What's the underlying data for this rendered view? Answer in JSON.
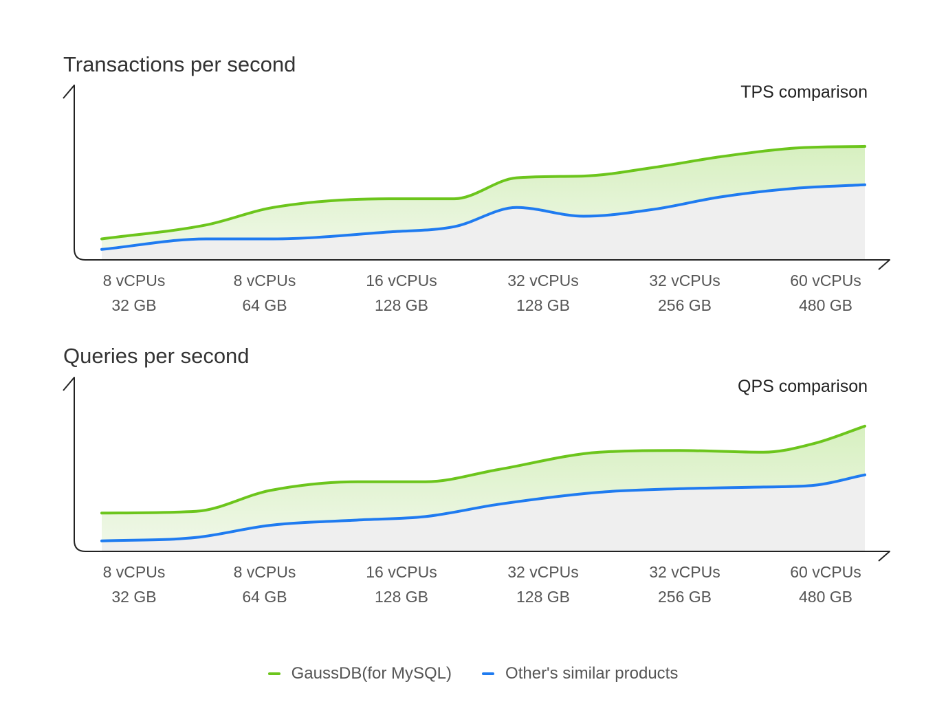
{
  "chart_data": [
    {
      "id": "tps",
      "type": "area",
      "title": "Transactions per second",
      "subtitle": "TPS comparison",
      "categories": [
        [
          "8 vCPUs",
          "32 GB"
        ],
        [
          "8 vCPUs",
          "64 GB"
        ],
        [
          "16 vCPUs",
          "128 GB"
        ],
        [
          "32 vCPUs",
          "128 GB"
        ],
        [
          "32 vCPUs",
          "256 GB"
        ],
        [
          "60 vCPUs",
          "480 GB"
        ]
      ],
      "x": [
        0.0,
        0.72,
        1.18,
        1.98,
        2.43,
        2.86,
        3.32,
        3.81,
        4.26,
        4.78,
        5.26
      ],
      "ylim": [
        0,
        100
      ],
      "series": [
        {
          "name": "GaussDB(for MySQL)",
          "color": "#6cc51c",
          "values": [
            12,
            20,
            30,
            35,
            35,
            47,
            48,
            53,
            59,
            64,
            65
          ]
        },
        {
          "name": "Other's similar products",
          "color": "#1f7bf0",
          "values": [
            6,
            12,
            12,
            16,
            19,
            30,
            25,
            29,
            36,
            41,
            43
          ]
        }
      ],
      "grid": false
    },
    {
      "id": "qps",
      "type": "area",
      "title": "Queries per second",
      "subtitle": "QPS comparison",
      "categories": [
        [
          "8 vCPUs",
          "32 GB"
        ],
        [
          "8 vCPUs",
          "64 GB"
        ],
        [
          "16 vCPUs",
          "128 GB"
        ],
        [
          "32 vCPUs",
          "128 GB"
        ],
        [
          "32 vCPUs",
          "256 GB"
        ],
        [
          "60 vCPUs",
          "480 GB"
        ]
      ],
      "x": [
        0.0,
        0.65,
        1.16,
        1.76,
        2.23,
        2.73,
        3.43,
        3.98,
        4.56,
        4.91,
        5.26
      ],
      "ylim": [
        0,
        100
      ],
      "series": [
        {
          "name": "GaussDB(for MySQL)",
          "color": "#6cc51c",
          "values": [
            22,
            23,
            35,
            40,
            40,
            47,
            57,
            58,
            57,
            62,
            72
          ]
        },
        {
          "name": "Other's similar products",
          "color": "#1f7bf0",
          "values": [
            6,
            8,
            15,
            18,
            20,
            27,
            34,
            36,
            37,
            38,
            44
          ]
        }
      ],
      "grid": false
    }
  ],
  "legend": [
    {
      "label": "GaussDB(for MySQL)",
      "color": "#6cc51c"
    },
    {
      "label": "Other's similar products",
      "color": "#1f7bf0"
    }
  ]
}
